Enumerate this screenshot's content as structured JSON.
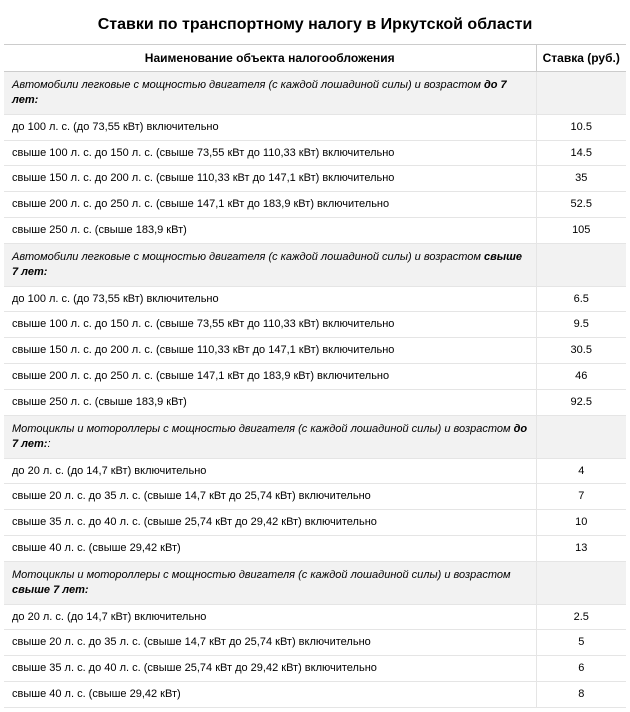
{
  "title": "Ставки по транспортному налогу в Иркутской области",
  "columns": {
    "name": "Наименование объекта налогообложения",
    "rate": "Ставка (руб.)"
  },
  "sections": [
    {
      "heading_prefix": "Автомобили легковые с мощностью двигателя (с каждой лошадиной силы) и возрастом ",
      "heading_bold": "до 7 лет:",
      "rows": [
        {
          "name": "до 100 л. с. (до 73,55 кВт) включительно",
          "rate": "10.5"
        },
        {
          "name": "свыше 100 л. с. до 150 л. с. (свыше 73,55 кВт до 110,33 кВт) включительно",
          "rate": "14.5"
        },
        {
          "name": "свыше 150 л. с. до 200 л. с. (свыше 110,33 кВт до 147,1 кВт) включительно",
          "rate": "35"
        },
        {
          "name": "свыше 200 л. с. до 250 л. с. (свыше 147,1 кВт до 183,9 кВт) включительно",
          "rate": "52.5"
        },
        {
          "name": "свыше 250 л. с. (свыше 183,9 кВт)",
          "rate": "105"
        }
      ]
    },
    {
      "heading_prefix": "Автомобили легковые с мощностью двигателя (с каждой лошадиной силы) и возрастом ",
      "heading_bold": "свыше 7 лет:",
      "rows": [
        {
          "name": "до 100 л. с. (до 73,55 кВт) включительно",
          "rate": "6.5"
        },
        {
          "name": "свыше 100 л. с. до 150 л. с. (свыше 73,55 кВт до 110,33 кВт) включительно",
          "rate": "9.5"
        },
        {
          "name": "свыше 150 л. с. до 200 л. с. (свыше 110,33 кВт до 147,1 кВт) включительно",
          "rate": "30.5"
        },
        {
          "name": "свыше 200 л. с. до 250 л. с. (свыше 147,1 кВт до 183,9 кВт) включительно",
          "rate": "46"
        },
        {
          "name": "свыше 250 л. с. (свыше 183,9 кВт)",
          "rate": "92.5"
        }
      ]
    },
    {
      "heading_prefix": "Мотоциклы и мотороллеры с мощностью двигателя (с каждой лошадиной силы) и возрастом ",
      "heading_bold": "до 7 лет:",
      "heading_suffix": ":",
      "rows": [
        {
          "name": "до 20 л. с. (до 14,7 кВт) включительно",
          "rate": "4"
        },
        {
          "name": "свыше 20 л. с. до 35 л. с. (свыше 14,7 кВт до 25,74 кВт) включительно",
          "rate": "7"
        },
        {
          "name": "свыше 35 л. с. до 40 л. с. (свыше 25,74 кВт до 29,42 кВт) включительно",
          "rate": "10"
        },
        {
          "name": "свыше 40 л. с. (свыше 29,42 кВт)",
          "rate": "13"
        }
      ]
    },
    {
      "heading_prefix": "Мотоциклы и мотороллеры с мощностью двигателя (с каждой лошадиной силы) и возрастом ",
      "heading_bold": "свыше 7 лет:",
      "rows": [
        {
          "name": "до 20 л. с. (до 14,7 кВт) включительно",
          "rate": "2.5"
        },
        {
          "name": "свыше 20 л. с. до 35 л. с. (свыше 14,7 кВт до 25,74 кВт) включительно",
          "rate": "5"
        },
        {
          "name": "свыше 35 л. с. до 40 л. с. (свыше 25,74 кВт до 29,42 кВт) включительно",
          "rate": "6"
        },
        {
          "name": "свыше 40 л. с. (свыше 29,42 кВт)",
          "rate": "8"
        }
      ]
    }
  ]
}
